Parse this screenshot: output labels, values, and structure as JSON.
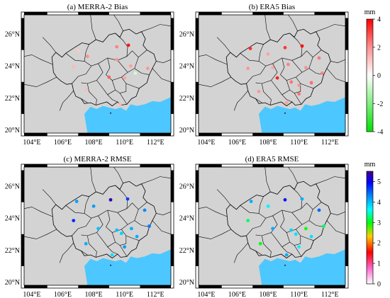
{
  "figure": {
    "panels": [
      {
        "id": "a",
        "title": "(a) MERRA-2 Bias",
        "scale": "bias",
        "points": [
          {
            "lon": 107.0,
            "lat": 24.95,
            "value": 0.0
          },
          {
            "lon": 109.5,
            "lat": 25.2,
            "value": 1.6
          },
          {
            "lon": 110.25,
            "lat": 25.3,
            "value": 3.6
          },
          {
            "lon": 107.6,
            "lat": 24.6,
            "value": 1.3
          },
          {
            "lon": 106.7,
            "lat": 23.95,
            "value": 0.4
          },
          {
            "lon": 109.5,
            "lat": 24.4,
            "value": 1.2
          },
          {
            "lon": 110.4,
            "lat": 24.0,
            "value": 1.0
          },
          {
            "lon": 110.7,
            "lat": 23.55,
            "value": -1.8
          },
          {
            "lon": 111.5,
            "lat": 23.85,
            "value": 1.2
          },
          {
            "lon": 109.0,
            "lat": 23.3,
            "value": 2.2
          },
          {
            "lon": 110.0,
            "lat": 23.25,
            "value": 0.9
          },
          {
            "lon": 107.5,
            "lat": 22.5,
            "value": 0.3
          },
          {
            "lon": 109.7,
            "lat": 21.6,
            "value": 0.4
          }
        ]
      },
      {
        "id": "b",
        "title": "(b) ERA5 Bias",
        "scale": "bias",
        "points": [
          {
            "lon": 106.85,
            "lat": 25.1,
            "value": 3.2
          },
          {
            "lon": 108.0,
            "lat": 24.75,
            "value": 0.9
          },
          {
            "lon": 109.1,
            "lat": 25.15,
            "value": 3.0
          },
          {
            "lon": 110.2,
            "lat": 25.25,
            "value": 3.8
          },
          {
            "lon": 111.3,
            "lat": 24.5,
            "value": 1.8
          },
          {
            "lon": 106.7,
            "lat": 23.85,
            "value": 1.2
          },
          {
            "lon": 108.3,
            "lat": 23.9,
            "value": 0.8
          },
          {
            "lon": 109.3,
            "lat": 24.1,
            "value": 1.6
          },
          {
            "lon": 110.45,
            "lat": 23.9,
            "value": 1.3
          },
          {
            "lon": 111.5,
            "lat": 23.55,
            "value": 1.6
          },
          {
            "lon": 108.6,
            "lat": 23.25,
            "value": 3.4
          },
          {
            "lon": 109.5,
            "lat": 23.0,
            "value": 1.9
          },
          {
            "lon": 110.0,
            "lat": 22.8,
            "value": 1.2
          },
          {
            "lon": 110.8,
            "lat": 22.95,
            "value": 2.0
          },
          {
            "lon": 107.4,
            "lat": 22.4,
            "value": 1.2
          },
          {
            "lon": 110.0,
            "lat": 22.25,
            "value": 1.9
          },
          {
            "lon": 109.2,
            "lat": 21.7,
            "value": 1.0
          }
        ]
      },
      {
        "id": "c",
        "title": "(c) MERRA-2 RMSE",
        "scale": "rmse",
        "points": [
          {
            "lon": 106.9,
            "lat": 25.05,
            "value": 4.0
          },
          {
            "lon": 108.0,
            "lat": 24.75,
            "value": 4.0
          },
          {
            "lon": 109.1,
            "lat": 25.15,
            "value": 5.3
          },
          {
            "lon": 110.2,
            "lat": 25.2,
            "value": 4.5
          },
          {
            "lon": 111.3,
            "lat": 24.5,
            "value": 4.1
          },
          {
            "lon": 106.7,
            "lat": 23.85,
            "value": 4.6
          },
          {
            "lon": 108.3,
            "lat": 23.35,
            "value": 3.8
          },
          {
            "lon": 109.5,
            "lat": 23.25,
            "value": 3.8
          },
          {
            "lon": 110.45,
            "lat": 23.35,
            "value": 3.9
          },
          {
            "lon": 111.6,
            "lat": 23.5,
            "value": 4.2
          },
          {
            "lon": 109.8,
            "lat": 23.05,
            "value": 3.7
          },
          {
            "lon": 110.8,
            "lat": 22.85,
            "value": 3.9
          },
          {
            "lon": 107.5,
            "lat": 22.4,
            "value": 3.9
          },
          {
            "lon": 110.0,
            "lat": 22.2,
            "value": 4.0
          },
          {
            "lon": 109.2,
            "lat": 21.7,
            "value": 3.6
          }
        ]
      },
      {
        "id": "d",
        "title": "(d) ERA5 RMSE",
        "scale": "rmse",
        "points": [
          {
            "lon": 106.9,
            "lat": 25.05,
            "value": 3.9
          },
          {
            "lon": 108.0,
            "lat": 24.75,
            "value": 3.5
          },
          {
            "lon": 109.1,
            "lat": 25.15,
            "value": 4.7
          },
          {
            "lon": 110.2,
            "lat": 25.2,
            "value": 3.9
          },
          {
            "lon": 111.3,
            "lat": 24.5,
            "value": 4.3
          },
          {
            "lon": 106.7,
            "lat": 23.85,
            "value": 3.0
          },
          {
            "lon": 108.3,
            "lat": 23.35,
            "value": 3.9
          },
          {
            "lon": 109.5,
            "lat": 23.25,
            "value": 3.7
          },
          {
            "lon": 110.45,
            "lat": 23.35,
            "value": 2.7
          },
          {
            "lon": 111.6,
            "lat": 23.5,
            "value": 3.0
          },
          {
            "lon": 109.8,
            "lat": 23.0,
            "value": 3.6
          },
          {
            "lon": 110.8,
            "lat": 22.85,
            "value": 3.6
          },
          {
            "lon": 107.5,
            "lat": 22.4,
            "value": 2.8
          },
          {
            "lon": 110.0,
            "lat": 22.2,
            "value": 3.5
          },
          {
            "lon": 109.2,
            "lat": 21.7,
            "value": 3.9
          }
        ]
      }
    ],
    "axes": {
      "lon_range": [
        103.5,
        113.0
      ],
      "lat_range": [
        19.8,
        27.2
      ],
      "lon_ticks": [
        "104°E",
        "106°E",
        "108°E",
        "110°E",
        "112°E"
      ],
      "lon_tick_values": [
        104,
        106,
        108,
        110,
        112
      ],
      "lat_ticks": [
        "20°N",
        "22°N",
        "24°N",
        "26°N"
      ],
      "lat_tick_values": [
        20,
        22,
        24,
        26
      ]
    },
    "colorbars": {
      "bias": {
        "unit": "mm",
        "min": -4,
        "max": 4,
        "tick_labels": [
          "4",
          "2",
          "0",
          "-2",
          "-4"
        ],
        "tick_values": [
          4,
          2,
          0,
          -2,
          -4
        ],
        "stops": [
          "#00e000",
          "#ffffff",
          "#ff9090",
          "#ff0000"
        ]
      },
      "rmse": {
        "unit": "mm",
        "min": 0,
        "max": 5.5,
        "tick_labels": [
          "5",
          "4",
          "3",
          "2",
          "1",
          "0"
        ],
        "tick_values": [
          5,
          4,
          3,
          2,
          1,
          0
        ],
        "stops": [
          "#ffffff",
          "#ff66cc",
          "#ff0000",
          "#ffcc00",
          "#00ff00",
          "#00ffff",
          "#0088ff",
          "#0000ff",
          "#440088"
        ]
      }
    },
    "colors": {
      "land": "#d3d3d3",
      "sea": "#4cc7ff",
      "border": "#000000"
    }
  }
}
